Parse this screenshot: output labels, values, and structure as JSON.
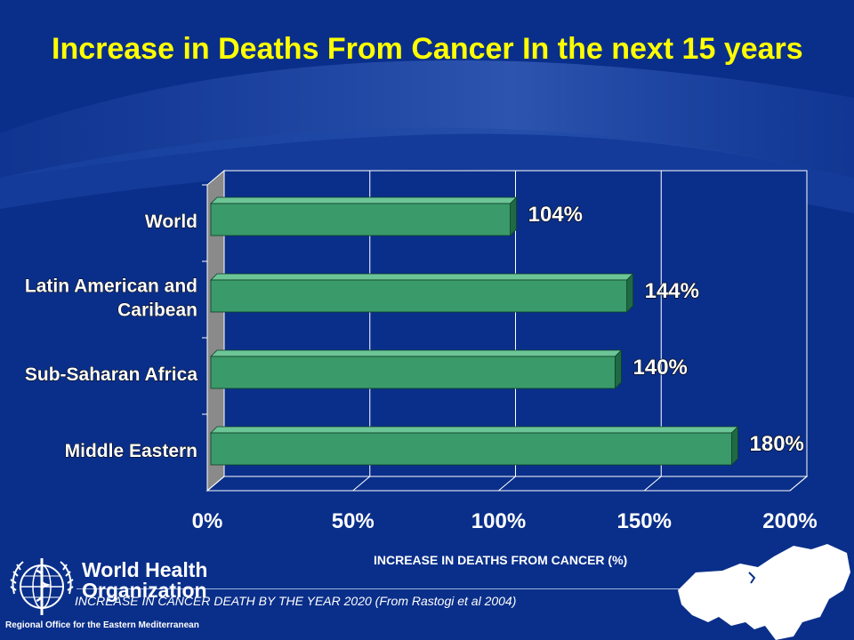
{
  "slide": {
    "title": "Increase in Deaths From Cancer In the next 15 years",
    "caption": "INCREASE IN CANCER DEATH BY THE YEAR 2020 (From Rastogi et al 2004)"
  },
  "organization": {
    "name_line1": "World Health",
    "name_line2": "Organization",
    "region": "Regional Office for the Eastern Mediterranean"
  },
  "colors": {
    "background": "#0a2f8a",
    "title": "#ffff00",
    "bar": "#3a9a6a",
    "bar_dark": "#1f6a44",
    "plot_area": "#0a2f8a",
    "text": "#ffffff"
  },
  "chart_data": {
    "type": "bar",
    "orientation": "horizontal",
    "categories": [
      "World",
      "Latin American and Caribean",
      "Sub-Saharan Africa",
      "Middle Eastern"
    ],
    "values": [
      104,
      144,
      140,
      180
    ],
    "data_labels": [
      "104%",
      "144%",
      "140%",
      "180%"
    ],
    "xlabel": "INCREASE IN DEATHS FROM CANCER (%)",
    "ylabel": "",
    "xlim": [
      0,
      200
    ],
    "x_ticks": [
      "0%",
      "50%",
      "100%",
      "150%",
      "200%"
    ],
    "grid": true,
    "style": "3d"
  }
}
